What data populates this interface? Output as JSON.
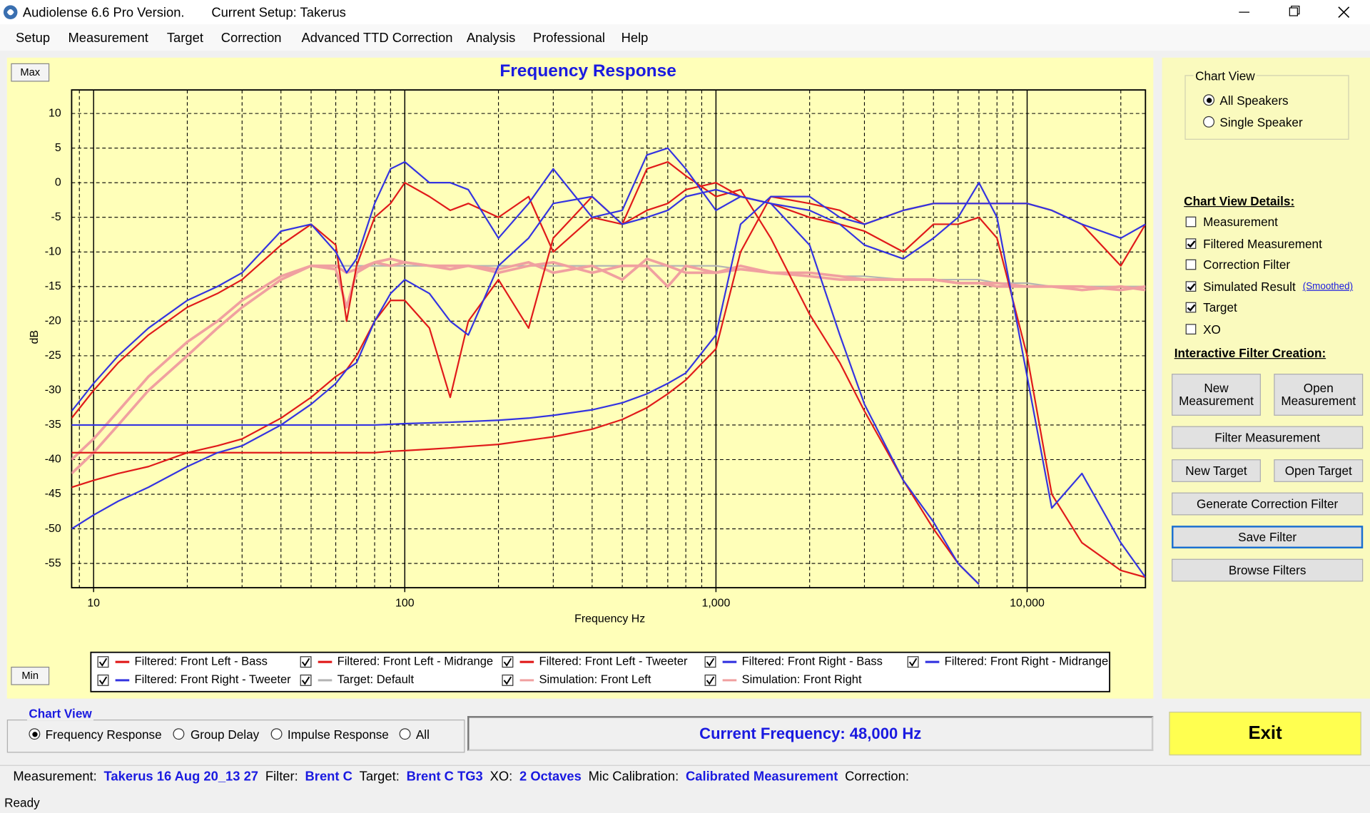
{
  "title_bar": {
    "app": "Audiolense 6.6 Pro Version.",
    "setup": "Current Setup: Takerus"
  },
  "menu": [
    "Setup",
    "Measurement",
    "Target",
    "Correction",
    "Advanced TTD Correction",
    "Analysis",
    "Professional",
    "Help"
  ],
  "chart_buttons": {
    "max": "Max",
    "min": "Min"
  },
  "chart_data": {
    "type": "line",
    "title": "Frequency Response",
    "x_label": "Frequency Hz",
    "y_label": "dB",
    "log_x": true,
    "grid": true,
    "xlim": [
      8.5,
      24000
    ],
    "ylim": [
      -58.5,
      13.4
    ],
    "xticks": [
      10,
      100,
      {
        "value": 1000,
        "label": "1,000"
      },
      {
        "value": 10000,
        "label": "10,000"
      }
    ],
    "x_minor_ticks": [
      9,
      20,
      30,
      40,
      50,
      60,
      70,
      80,
      90,
      200,
      300,
      400,
      500,
      600,
      700,
      800,
      900,
      2000,
      3000,
      4000,
      5000,
      6000,
      7000,
      8000,
      9000,
      20000
    ],
    "yticks": [
      10,
      5,
      0,
      -5,
      -10,
      -15,
      -20,
      -25,
      -30,
      -35,
      -40,
      -45,
      -50,
      -55
    ],
    "x": [
      8.5,
      10,
      12,
      15,
      20,
      25,
      30,
      40,
      50,
      60,
      65,
      70,
      80,
      90,
      100,
      120,
      140,
      160,
      200,
      250,
      300,
      400,
      500,
      600,
      700,
      800,
      1000,
      1200,
      1500,
      2000,
      2500,
      3000,
      4000,
      5000,
      6000,
      7000,
      8000,
      10000,
      12000,
      15000,
      20000,
      24000
    ],
    "series": [
      {
        "name": "Filtered: Front Left - Bass",
        "color": "#e01a1a",
        "values": [
          -34,
          -30,
          -26,
          -22,
          -18,
          -16,
          -14,
          -9,
          -6,
          -9,
          -20,
          -12,
          -5,
          -3,
          0,
          -2,
          -4,
          -3,
          -5,
          -2,
          -10,
          -5,
          -6,
          2,
          3,
          1,
          -2,
          -1,
          -8,
          -19,
          -26,
          -33,
          -43,
          -50,
          -55,
          -58,
          null,
          null,
          null,
          null,
          null,
          null
        ]
      },
      {
        "name": "Filtered: Front Left - Midrange",
        "color": "#e01a1a",
        "values": [
          -44,
          -43,
          -42,
          -41,
          -39,
          -38,
          -37,
          -34,
          -31,
          -28,
          -27,
          -25,
          -20,
          -17,
          -17,
          -21,
          -31,
          -20,
          -14,
          -21,
          -8,
          -2,
          -6,
          -4,
          -3,
          -1,
          0,
          -2,
          -3,
          -5,
          -6,
          -7,
          -10,
          -6,
          -6,
          -5,
          -8,
          -25,
          -45,
          -52,
          -56,
          -57
        ]
      },
      {
        "name": "Filtered: Front Left - Tweeter",
        "color": "#e01a1a",
        "values": [
          -39,
          -39,
          -39,
          -39,
          -39,
          -39,
          -39,
          -39,
          -39,
          -39,
          -39,
          -39,
          -39,
          -38.8,
          -38.7,
          -38.5,
          -38.3,
          -38.1,
          -37.8,
          -37.2,
          -36.7,
          -35.6,
          -34.2,
          -32.5,
          -30.5,
          -28.5,
          -24,
          -10,
          -2,
          -3,
          -4,
          -6,
          -4,
          -3,
          -3,
          -3,
          -3,
          -3,
          -4,
          -6,
          -12,
          -6
        ]
      },
      {
        "name": "Filtered: Front Right - Bass",
        "color": "#3434e0",
        "values": [
          -33,
          -29,
          -25,
          -21,
          -17,
          -15,
          -13,
          -7,
          -6,
          -10,
          -13,
          -11,
          -3,
          2,
          3,
          0,
          0,
          -1,
          -8,
          -3,
          2,
          -5,
          -4,
          4,
          5,
          2,
          -4,
          -2,
          -3,
          -9,
          -22,
          -32,
          -43,
          -49,
          -55,
          -58,
          null,
          null,
          null,
          null,
          null,
          null
        ]
      },
      {
        "name": "Filtered: Front Right - Midrange",
        "color": "#3434e0",
        "values": [
          -50,
          -48,
          -46,
          -44,
          -41,
          -39,
          -38,
          -35,
          -32,
          -29,
          -27,
          -26,
          -20,
          -16,
          -14,
          -16,
          -20,
          -22,
          -12,
          -8,
          -3,
          -2,
          -6,
          -5,
          -4,
          -2,
          -1,
          -2,
          -3,
          -4,
          -6,
          -9,
          -11,
          -8,
          -5,
          0,
          -5,
          -28,
          -47,
          -42,
          -52,
          -57
        ]
      },
      {
        "name": "Filtered: Front Right - Tweeter",
        "color": "#3434e0",
        "values": [
          -35,
          -35,
          -35,
          -35,
          -35,
          -35,
          -35,
          -35,
          -35,
          -35,
          -35,
          -35,
          -35,
          -34.9,
          -34.8,
          -34.7,
          -34.6,
          -34.5,
          -34.3,
          -34,
          -33.6,
          -32.8,
          -31.8,
          -30.5,
          -29,
          -27.5,
          -22,
          -6,
          -2,
          -2,
          -5,
          -6,
          -4,
          -3,
          -3,
          -3,
          -3,
          -3,
          -4,
          -6,
          -8,
          -6
        ]
      },
      {
        "name": "Target: Default",
        "color": "#b4b4b4",
        "values": [
          null,
          null,
          null,
          null,
          null,
          null,
          null,
          null,
          null,
          -12,
          -12,
          -12,
          -12,
          -12,
          -12,
          -12,
          -12,
          -12,
          -12,
          -12,
          -12,
          -12,
          -12,
          -12,
          -12,
          -12,
          -12,
          -12.5,
          -13,
          -13,
          -13.5,
          -13.5,
          -14,
          -14,
          -14,
          -14,
          -14.5,
          -14.5,
          -15,
          -15,
          -15,
          -15
        ]
      },
      {
        "name": "Simulation: Front Left",
        "color": "#f0a0a0",
        "values": [
          -42,
          -39,
          -35,
          -30,
          -25,
          -21,
          -18,
          -14,
          -12,
          -12.5,
          -18,
          -13,
          -11.5,
          -12,
          -11.5,
          -12,
          -12.5,
          -12,
          -12.5,
          -11.5,
          -13,
          -12,
          -14,
          -11,
          -12,
          -13,
          -13,
          -12.5,
          -13,
          -13.5,
          -14,
          -14,
          -14,
          -14,
          -14.5,
          -14.5,
          -15,
          -15,
          -15,
          -15.5,
          -15,
          -15.5
        ]
      },
      {
        "name": "Simulation: Front Right",
        "color": "#f0a0a0",
        "values": [
          -40,
          -37,
          -33,
          -28,
          -23,
          -20,
          -17,
          -13.5,
          -12,
          -12,
          -13,
          -12.5,
          -11.5,
          -11,
          -11.5,
          -12,
          -12,
          -12,
          -13,
          -12,
          -11.5,
          -13,
          -12,
          -12,
          -15,
          -12,
          -13,
          -12,
          -13,
          -13,
          -13.5,
          -14,
          -14,
          -14,
          -14.5,
          -14.5,
          -14.5,
          -15,
          -15,
          -15,
          -15.5,
          -15
        ]
      }
    ]
  },
  "right_panel": {
    "chart_view": {
      "title": "Chart View",
      "options": [
        {
          "label": "All Speakers",
          "selected": true
        },
        {
          "label": "Single Speaker",
          "selected": false
        }
      ]
    },
    "details": {
      "title": "Chart View Details:",
      "items": [
        {
          "label": "Measurement",
          "checked": false
        },
        {
          "label": "Filtered Measurement",
          "checked": true
        },
        {
          "label": "Correction Filter",
          "checked": false
        },
        {
          "label": "Simulated Result",
          "checked": true
        },
        {
          "label": "Target",
          "checked": true
        },
        {
          "label": "XO",
          "checked": false
        }
      ],
      "smoothed": "(Smoothed)"
    },
    "filter_creation": {
      "title": "Interactive Filter Creation:",
      "buttons": [
        "New Measurement",
        "Open Measurement",
        "Filter Measurement",
        "New Target",
        "Open Target",
        "Generate Correction Filter",
        "Save Filter",
        "Browse Filters"
      ]
    }
  },
  "bottom": {
    "chart_view": {
      "title": "Chart View",
      "options": [
        {
          "label": "Frequency Response",
          "selected": true
        },
        {
          "label": "Group Delay",
          "selected": false
        },
        {
          "label": "Impulse Response",
          "selected": false
        },
        {
          "label": "All",
          "selected": false
        }
      ]
    },
    "current_frequency": "Current Frequency: 48,000 Hz",
    "exit": "Exit"
  },
  "status": {
    "fields": [
      {
        "label": "Measurement:",
        "value": "Takerus 16 Aug 20_13 27"
      },
      {
        "label": "Filter:",
        "value": "Brent C"
      },
      {
        "label": "Target:",
        "value": "Brent C TG3"
      },
      {
        "label": "XO:",
        "value": "2 Octaves"
      },
      {
        "label": "Mic Calibration:",
        "value": "Calibrated Measurement"
      },
      {
        "label": "Correction:"
      }
    ],
    "state": "Ready"
  }
}
